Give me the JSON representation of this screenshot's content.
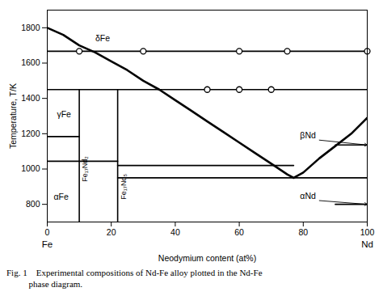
{
  "chart_data": {
    "type": "line",
    "xlabel": "Neodymium content (at%)",
    "ylabel": "Temperature, T/K",
    "caption": "Fig. 1    Experimental compositions of Nd-Fe alloy plotted in the Nd-Fe\n          phase diagram.",
    "x_end_labels": [
      "Fe",
      "Nd"
    ],
    "xlim": [
      0,
      100
    ],
    "ylim": [
      700,
      1900
    ],
    "xticks": [
      0,
      20,
      40,
      60,
      80,
      100
    ],
    "yticks": [
      800,
      1000,
      1200,
      1400,
      1600,
      1800
    ],
    "grid": false,
    "series": [
      {
        "type": "line",
        "color": "black",
        "line_style": "solid",
        "x": [
          0,
          5,
          10,
          15,
          20,
          25,
          30,
          35,
          40,
          45,
          50,
          55,
          60,
          65,
          70,
          75,
          77,
          80,
          85,
          90,
          95,
          100
        ],
        "values": [
          1800,
          1760,
          1700,
          1660,
          1610,
          1560,
          1500,
          1450,
          1390,
          1330,
          1270,
          1210,
          1150,
          1090,
          1030,
          970,
          950,
          980,
          1060,
          1130,
          1200,
          1290
        ]
      },
      {
        "type": "line",
        "color": "black",
        "line_style": "solid",
        "x": [
          0,
          100
        ],
        "values": [
          1667,
          1667
        ]
      },
      {
        "type": "line",
        "color": "black",
        "line_style": "solid",
        "x": [
          0,
          100
        ],
        "values": [
          1450,
          1450
        ]
      },
      {
        "type": "line",
        "color": "black",
        "line_style": "solid",
        "x": [
          0,
          10
        ],
        "values": [
          1184,
          1184
        ]
      },
      {
        "type": "line",
        "color": "black",
        "line_style": "solid",
        "x": [
          0,
          22
        ],
        "values": [
          1044,
          1044
        ]
      },
      {
        "type": "line",
        "color": "black",
        "line_style": "solid",
        "x": [
          22,
          100
        ],
        "values": [
          950,
          950
        ]
      },
      {
        "type": "line",
        "color": "black",
        "line_style": "solid",
        "x": [
          90,
          100
        ],
        "values": [
          1136,
          1136
        ]
      },
      {
        "type": "line",
        "color": "black",
        "line_style": "solid",
        "x": [
          22,
          77
        ],
        "values": [
          1020,
          1020
        ]
      },
      {
        "type": "line",
        "color": "black",
        "line_style": "solid",
        "x": [
          90,
          100
        ],
        "values": [
          800,
          800
        ]
      },
      {
        "type": "line",
        "color": "black",
        "line_style": "solid",
        "x": [
          10,
          10
        ],
        "values": [
          700,
          1450
        ]
      },
      {
        "type": "line",
        "color": "black",
        "line_style": "solid",
        "x": [
          22,
          22
        ],
        "values": [
          700,
          1450
        ]
      },
      {
        "type": "scatter",
        "marker": "circle",
        "color": "black",
        "x": [
          10,
          30,
          60,
          75,
          100,
          50,
          60,
          70
        ],
        "values": [
          1667,
          1667,
          1667,
          1667,
          1667,
          1450,
          1450,
          1450
        ]
      }
    ],
    "annotations": [
      {
        "text": "δFe",
        "x": 15,
        "y": 1740
      },
      {
        "text": "γFe",
        "x": 3,
        "y": 1310
      },
      {
        "text": "αFe",
        "x": 2,
        "y": 840
      },
      {
        "text": "Fe₁₇Nd₂",
        "x": 11,
        "y": 1000,
        "orientation": "vertical"
      },
      {
        "text": "Fe₁₇Nd₅",
        "x": 23,
        "y": 900,
        "orientation": "vertical"
      },
      {
        "text": "βNd",
        "x": 79,
        "y": 1175,
        "arrow_to": [
          100,
          1136
        ]
      },
      {
        "text": "αNd",
        "x": 79,
        "y": 830,
        "arrow_to": [
          100,
          800
        ]
      }
    ]
  }
}
